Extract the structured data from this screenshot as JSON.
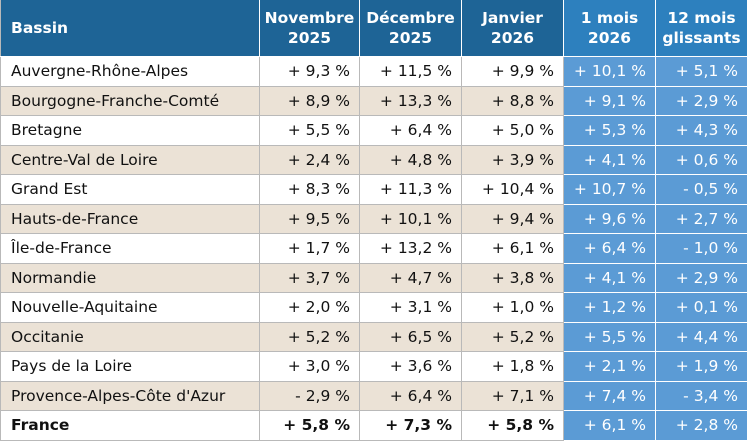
{
  "table": {
    "headers": [
      {
        "line1": "Bassin",
        "line2": ""
      },
      {
        "line1": "Novembre",
        "line2": "2025"
      },
      {
        "line1": "Décembre",
        "line2": "2025"
      },
      {
        "line1": "Janvier",
        "line2": "2026"
      },
      {
        "line1": "1 mois",
        "line2": "2026"
      },
      {
        "line1": "12 mois",
        "line2": "glissants"
      }
    ],
    "rows": [
      [
        "Auvergne-Rhône-Alpes",
        "+ 9,3 %",
        "+ 11,5 %",
        "+ 9,9 %",
        "+ 10,1 %",
        "+ 5,1 %"
      ],
      [
        "Bourgogne-Franche-Comté",
        "+ 8,9 %",
        "+ 13,3 %",
        "+ 8,8 %",
        "+ 9,1 %",
        "+ 2,9 %"
      ],
      [
        "Bretagne",
        "+ 5,5 %",
        "+ 6,4 %",
        "+ 5,0 %",
        "+ 5,3 %",
        "+ 4,3 %"
      ],
      [
        "Centre-Val de Loire",
        "+ 2,4 %",
        "+ 4,8 %",
        "+ 3,9 %",
        "+ 4,1 %",
        "+ 0,6 %"
      ],
      [
        "Grand Est",
        "+ 8,3 %",
        "+ 11,3 %",
        "+ 10,4 %",
        "+ 10,7 %",
        "- 0,5 %"
      ],
      [
        "Hauts-de-France",
        "+ 9,5 %",
        "+ 10,1 %",
        "+ 9,4 %",
        "+ 9,6 %",
        "+ 2,7 %"
      ],
      [
        "Île-de-France",
        "+ 1,7 %",
        "+ 13,2 %",
        "+ 6,1 %",
        "+ 6,4 %",
        "- 1,0 %"
      ],
      [
        "Normandie",
        "+ 3,7 %",
        "+ 4,7 %",
        "+ 3,8 %",
        "+ 4,1 %",
        "+ 2,9 %"
      ],
      [
        "Nouvelle-Aquitaine",
        "+ 2,0 %",
        "+ 3,1 %",
        "+ 1,0 %",
        "+ 1,2 %",
        "+ 0,1 %"
      ],
      [
        "Occitanie",
        "+ 5,2 %",
        "+ 6,5 %",
        "+ 5,2 %",
        "+ 5,5 %",
        "+ 4,4 %"
      ],
      [
        "Pays de la Loire",
        "+ 3,0 %",
        "+ 3,6 %",
        "+ 1,8 %",
        "+ 2,1 %",
        "+ 1,9 %"
      ],
      [
        "Provence-Alpes-Côte d'Azur",
        "- 2,9 %",
        "+ 6,4 %",
        "+ 7,1 %",
        "+ 7,4 %",
        "- 3,4 %"
      ]
    ],
    "total": [
      "France",
      "+ 5,8 %",
      "+ 7,3 %",
      "+ 5,8 %",
      "+ 6,1 %",
      "+ 2,8 %"
    ]
  },
  "colors": {
    "header_dark": "#1e6496",
    "header_accent": "#2d80be",
    "highlight_cells": "#5b9bd5",
    "band_beige": "#ebe2d6"
  }
}
